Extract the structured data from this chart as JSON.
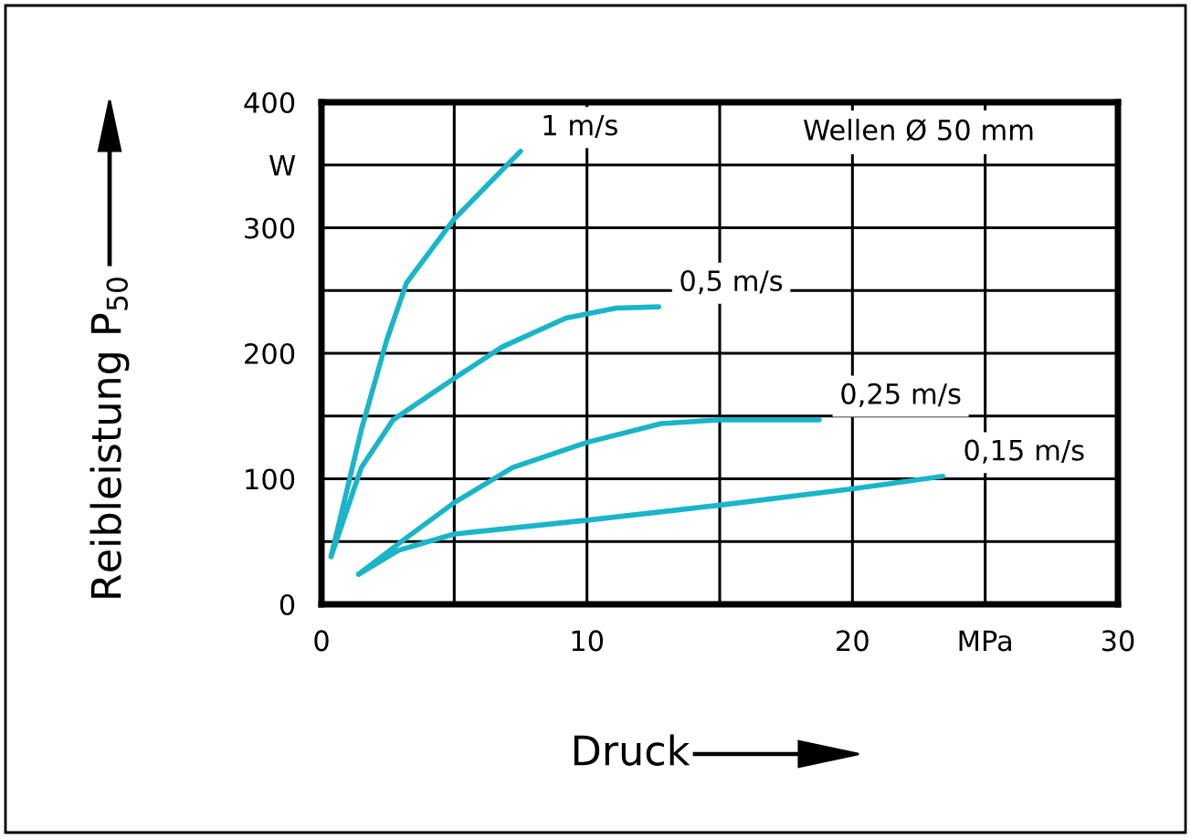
{
  "chart_data": {
    "type": "line",
    "xlabel": "Druck",
    "ylabel": "Reibleistung P$_{50}$",
    "xlim": [
      0,
      30
    ],
    "ylim": [
      0,
      400
    ],
    "xticks": [
      0,
      {
        "value": 5,
        "label": null
      },
      10,
      {
        "value": 15,
        "label": null
      },
      20,
      {
        "value": 25,
        "label": "MPa"
      },
      30
    ],
    "yticks": [
      0,
      {
        "value": 50,
        "label": null
      },
      100,
      {
        "value": 150,
        "label": null
      },
      200,
      {
        "value": 250,
        "label": null
      },
      300,
      {
        "value": 350,
        "label": "W"
      },
      400
    ],
    "grid": true,
    "legend": false,
    "annotations": [
      "Wellen Ø 50 mm"
    ],
    "series": [
      {
        "name": "1 m/s",
        "color": "#1ab5c8",
        "x": [
          0.36,
          1.5,
          2.45,
          3.2,
          5.0,
          7.5
        ],
        "values": [
          38,
          139,
          210,
          256,
          307,
          361
        ]
      },
      {
        "name": "0,5 m/s",
        "color": "#1ab5c8",
        "x": [
          0.36,
          1.5,
          2.7,
          5.0,
          6.8,
          9.2,
          11.1,
          12.7
        ],
        "values": [
          38,
          109,
          147,
          180,
          205,
          228,
          236,
          237
        ]
      },
      {
        "name": "0,25 m/s",
        "color": "#1ab5c8",
        "x": [
          1.4,
          3.2,
          5.0,
          7.2,
          10.0,
          12.8,
          15.0,
          18.75
        ],
        "values": [
          24,
          53,
          81,
          109,
          129,
          144,
          147,
          147
        ]
      },
      {
        "name": "0,15 m/s",
        "color": "#1ab5c8",
        "x": [
          1.4,
          2.9,
          5.0,
          10.0,
          15.0,
          20.0,
          23.4
        ],
        "values": [
          24,
          43,
          56,
          67,
          79,
          92,
          102
        ]
      }
    ]
  }
}
